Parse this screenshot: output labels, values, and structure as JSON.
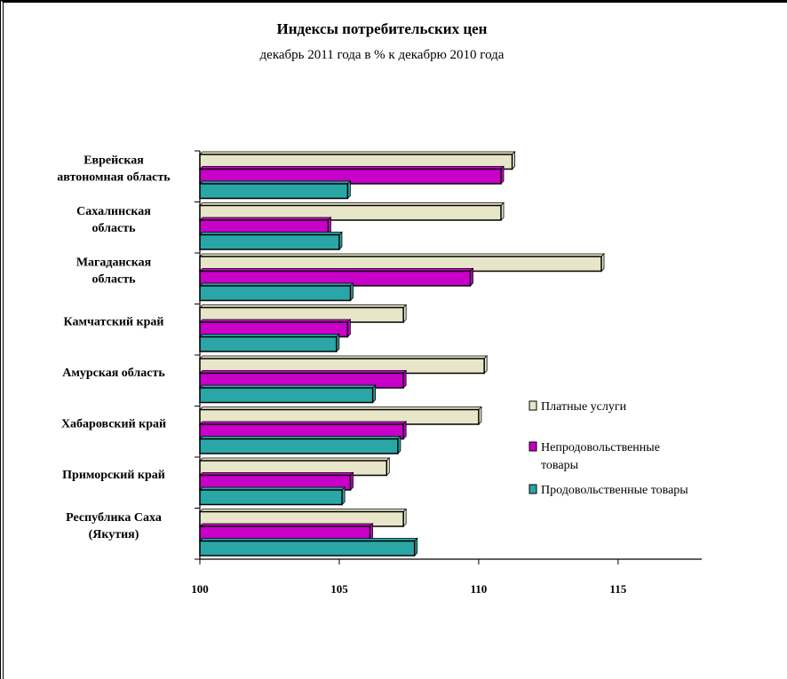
{
  "chart_data": {
    "type": "bar",
    "orientation": "horizontal",
    "title": "Индексы потребительских цен",
    "subtitle": "декабрь 2011 года в % к декабрю 2010 года",
    "categories": [
      [
        "Еврейская",
        "автономная область"
      ],
      [
        "Сахалинская",
        "область"
      ],
      [
        "Магаданская",
        "область"
      ],
      [
        "Камчатский край"
      ],
      [
        "Амурская область"
      ],
      [
        "Хабаровский край"
      ],
      [
        "Приморский край"
      ],
      [
        "Республика Саха",
        "(Якутия)"
      ]
    ],
    "series": [
      {
        "name": "Платные услуги",
        "color": "#e8e6c8",
        "values": [
          111.2,
          110.8,
          114.4,
          107.3,
          110.2,
          110.0,
          106.7,
          107.3
        ]
      },
      {
        "name": "Непродовольственные товары",
        "legend_lines": [
          "Непродовольственные",
          "товары"
        ],
        "color": "#c800c8",
        "values": [
          110.8,
          104.6,
          109.7,
          105.3,
          107.3,
          107.3,
          105.4,
          106.1
        ]
      },
      {
        "name": "Продовольственные товары",
        "color": "#2aa6a6",
        "values": [
          105.3,
          105.0,
          105.4,
          104.9,
          106.2,
          107.1,
          105.1,
          107.7
        ]
      }
    ],
    "xlim": [
      100,
      118
    ],
    "xticks": [
      100,
      105,
      110,
      115
    ],
    "grid": false,
    "legend_position": "right"
  }
}
